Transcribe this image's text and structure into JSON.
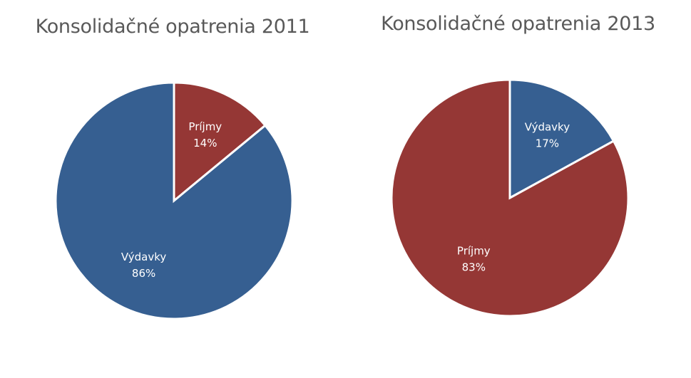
{
  "chart_data": [
    {
      "type": "pie",
      "title": "Konsolidačné opatrenia 2011",
      "slices": [
        {
          "label": "Príjmy",
          "value": 14,
          "value_label": "14%",
          "color": "#953735"
        },
        {
          "label": "Výdavky",
          "value": 86,
          "value_label": "86%",
          "color": "#365f91"
        }
      ]
    },
    {
      "type": "pie",
      "title": "Konsolidačné opatrenia 2013",
      "slices": [
        {
          "label": "Príjmy",
          "value": 83,
          "value_label": "83%",
          "color": "#953735"
        },
        {
          "label": "Výdavky",
          "value": 17,
          "value_label": "17%",
          "color": "#365f91"
        }
      ]
    }
  ]
}
